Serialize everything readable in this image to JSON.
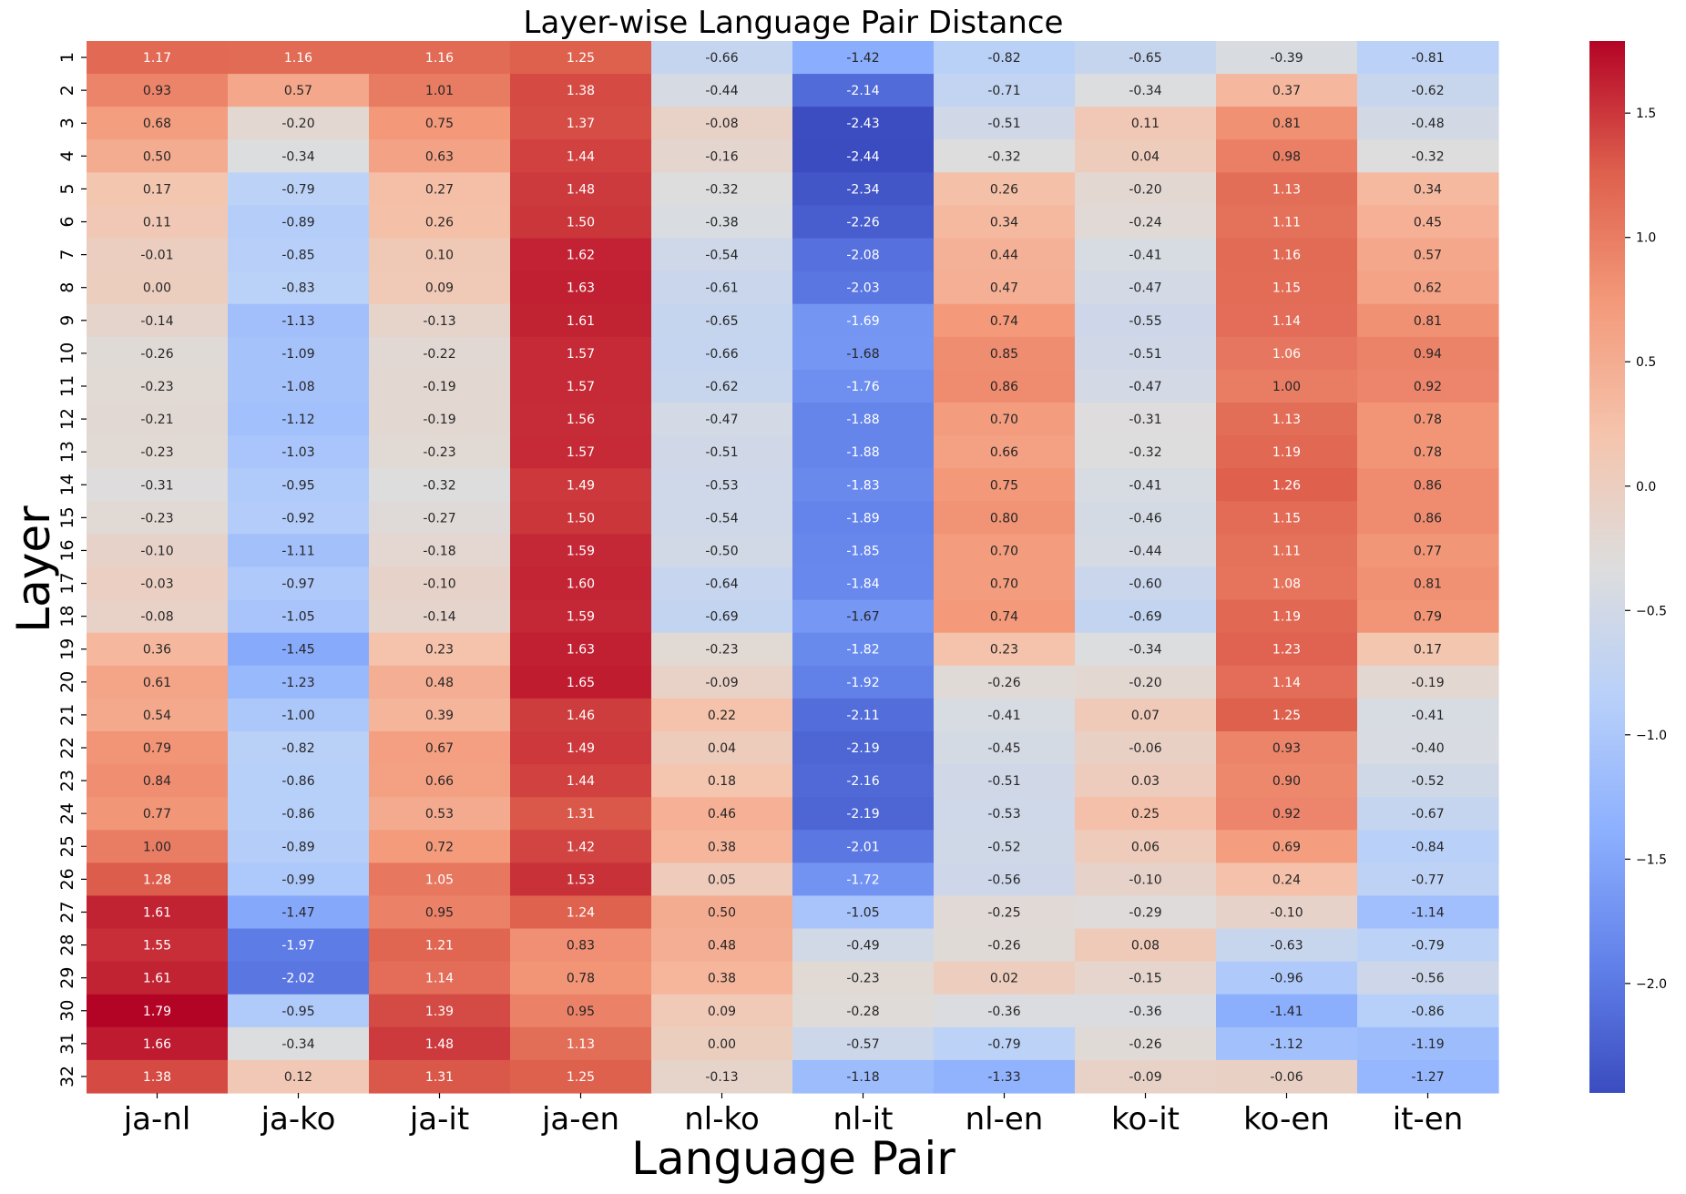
{
  "chart_data": {
    "type": "heatmap",
    "title": "Layer-wise Language Pair Distance",
    "xlabel": "Language Pair",
    "ylabel": "Layer",
    "columns": [
      "ja-nl",
      "ja-ko",
      "ja-it",
      "ja-en",
      "nl-ko",
      "nl-it",
      "nl-en",
      "ko-it",
      "ko-en",
      "it-en"
    ],
    "rows": [
      "1",
      "2",
      "3",
      "4",
      "5",
      "6",
      "7",
      "8",
      "9",
      "10",
      "11",
      "12",
      "13",
      "14",
      "15",
      "16",
      "17",
      "18",
      "19",
      "20",
      "21",
      "22",
      "23",
      "24",
      "25",
      "26",
      "27",
      "28",
      "29",
      "30",
      "31",
      "32"
    ],
    "values": [
      [
        1.17,
        1.16,
        1.16,
        1.25,
        -0.66,
        -1.42,
        -0.82,
        -0.65,
        -0.39,
        -0.81
      ],
      [
        0.93,
        0.57,
        1.01,
        1.38,
        -0.44,
        -2.14,
        -0.71,
        -0.34,
        0.37,
        -0.62
      ],
      [
        0.68,
        -0.2,
        0.75,
        1.37,
        -0.08,
        -2.43,
        -0.51,
        0.11,
        0.81,
        -0.48
      ],
      [
        0.5,
        -0.34,
        0.63,
        1.44,
        -0.16,
        -2.44,
        -0.32,
        0.04,
        0.98,
        -0.32
      ],
      [
        0.17,
        -0.79,
        0.27,
        1.48,
        -0.32,
        -2.34,
        0.26,
        -0.2,
        1.13,
        0.34
      ],
      [
        0.11,
        -0.89,
        0.26,
        1.5,
        -0.38,
        -2.26,
        0.34,
        -0.24,
        1.11,
        0.45
      ],
      [
        -0.01,
        -0.85,
        0.1,
        1.62,
        -0.54,
        -2.08,
        0.44,
        -0.41,
        1.16,
        0.57
      ],
      [
        -0.0,
        -0.83,
        0.09,
        1.63,
        -0.61,
        -2.03,
        0.47,
        -0.47,
        1.15,
        0.62
      ],
      [
        -0.14,
        -1.13,
        -0.13,
        1.61,
        -0.65,
        -1.69,
        0.74,
        -0.55,
        1.14,
        0.81
      ],
      [
        -0.26,
        -1.09,
        -0.22,
        1.57,
        -0.66,
        -1.68,
        0.85,
        -0.51,
        1.06,
        0.94
      ],
      [
        -0.23,
        -1.08,
        -0.19,
        1.57,
        -0.62,
        -1.76,
        0.86,
        -0.47,
        1.0,
        0.92
      ],
      [
        -0.21,
        -1.12,
        -0.19,
        1.56,
        -0.47,
        -1.88,
        0.7,
        -0.31,
        1.13,
        0.78
      ],
      [
        -0.23,
        -1.03,
        -0.23,
        1.57,
        -0.51,
        -1.88,
        0.66,
        -0.32,
        1.19,
        0.78
      ],
      [
        -0.31,
        -0.95,
        -0.32,
        1.49,
        -0.53,
        -1.83,
        0.75,
        -0.41,
        1.26,
        0.86
      ],
      [
        -0.23,
        -0.92,
        -0.27,
        1.5,
        -0.54,
        -1.89,
        0.8,
        -0.46,
        1.15,
        0.86
      ],
      [
        -0.1,
        -1.11,
        -0.18,
        1.59,
        -0.5,
        -1.85,
        0.7,
        -0.44,
        1.11,
        0.77
      ],
      [
        -0.03,
        -0.97,
        -0.1,
        1.6,
        -0.64,
        -1.84,
        0.7,
        -0.6,
        1.08,
        0.81
      ],
      [
        -0.08,
        -1.05,
        -0.14,
        1.59,
        -0.69,
        -1.67,
        0.74,
        -0.69,
        1.19,
        0.79
      ],
      [
        0.36,
        -1.45,
        0.23,
        1.63,
        -0.23,
        -1.82,
        0.23,
        -0.34,
        1.23,
        0.17
      ],
      [
        0.61,
        -1.23,
        0.48,
        1.65,
        -0.09,
        -1.92,
        -0.26,
        -0.2,
        1.14,
        -0.19
      ],
      [
        0.54,
        -1.0,
        0.39,
        1.46,
        0.22,
        -2.11,
        -0.41,
        0.07,
        1.25,
        -0.41
      ],
      [
        0.79,
        -0.82,
        0.67,
        1.49,
        0.04,
        -2.19,
        -0.45,
        -0.06,
        0.93,
        -0.4
      ],
      [
        0.84,
        -0.86,
        0.66,
        1.44,
        0.18,
        -2.16,
        -0.51,
        0.03,
        0.9,
        -0.52
      ],
      [
        0.77,
        -0.86,
        0.53,
        1.31,
        0.46,
        -2.19,
        -0.53,
        0.25,
        0.92,
        -0.67
      ],
      [
        1.0,
        -0.89,
        0.72,
        1.42,
        0.38,
        -2.01,
        -0.52,
        0.06,
        0.69,
        -0.84
      ],
      [
        1.28,
        -0.99,
        1.05,
        1.53,
        0.05,
        -1.72,
        -0.56,
        -0.1,
        0.24,
        -0.77
      ],
      [
        1.61,
        -1.47,
        0.95,
        1.24,
        0.5,
        -1.05,
        -0.25,
        -0.29,
        -0.1,
        -1.14
      ],
      [
        1.55,
        -1.97,
        1.21,
        0.83,
        0.48,
        -0.49,
        -0.26,
        0.08,
        -0.63,
        -0.79
      ],
      [
        1.61,
        -2.02,
        1.14,
        0.78,
        0.38,
        -0.23,
        0.02,
        -0.15,
        -0.96,
        -0.56
      ],
      [
        1.79,
        -0.95,
        1.39,
        0.95,
        0.09,
        -0.28,
        -0.36,
        -0.36,
        -1.41,
        -0.86
      ],
      [
        1.66,
        -0.34,
        1.48,
        1.13,
        0.0,
        -0.57,
        -0.79,
        -0.26,
        -1.12,
        -1.19
      ],
      [
        1.38,
        0.12,
        1.31,
        1.25,
        -0.13,
        -1.18,
        -1.33,
        -0.09,
        -0.06,
        -1.27
      ]
    ],
    "value_labels_format": "2 decimals",
    "colormap": "coolwarm",
    "colorbar": {
      "range": [
        -2.44,
        1.79
      ],
      "ticks": [
        1.5,
        1.0,
        0.5,
        0.0,
        -0.5,
        -1.0,
        -1.5,
        -2.0
      ],
      "tick_labels": [
        "1.5",
        "1.0",
        "0.5",
        "0.0",
        "−0.5",
        "−1.0",
        "−1.5",
        "−2.0"
      ]
    },
    "grid": false
  }
}
